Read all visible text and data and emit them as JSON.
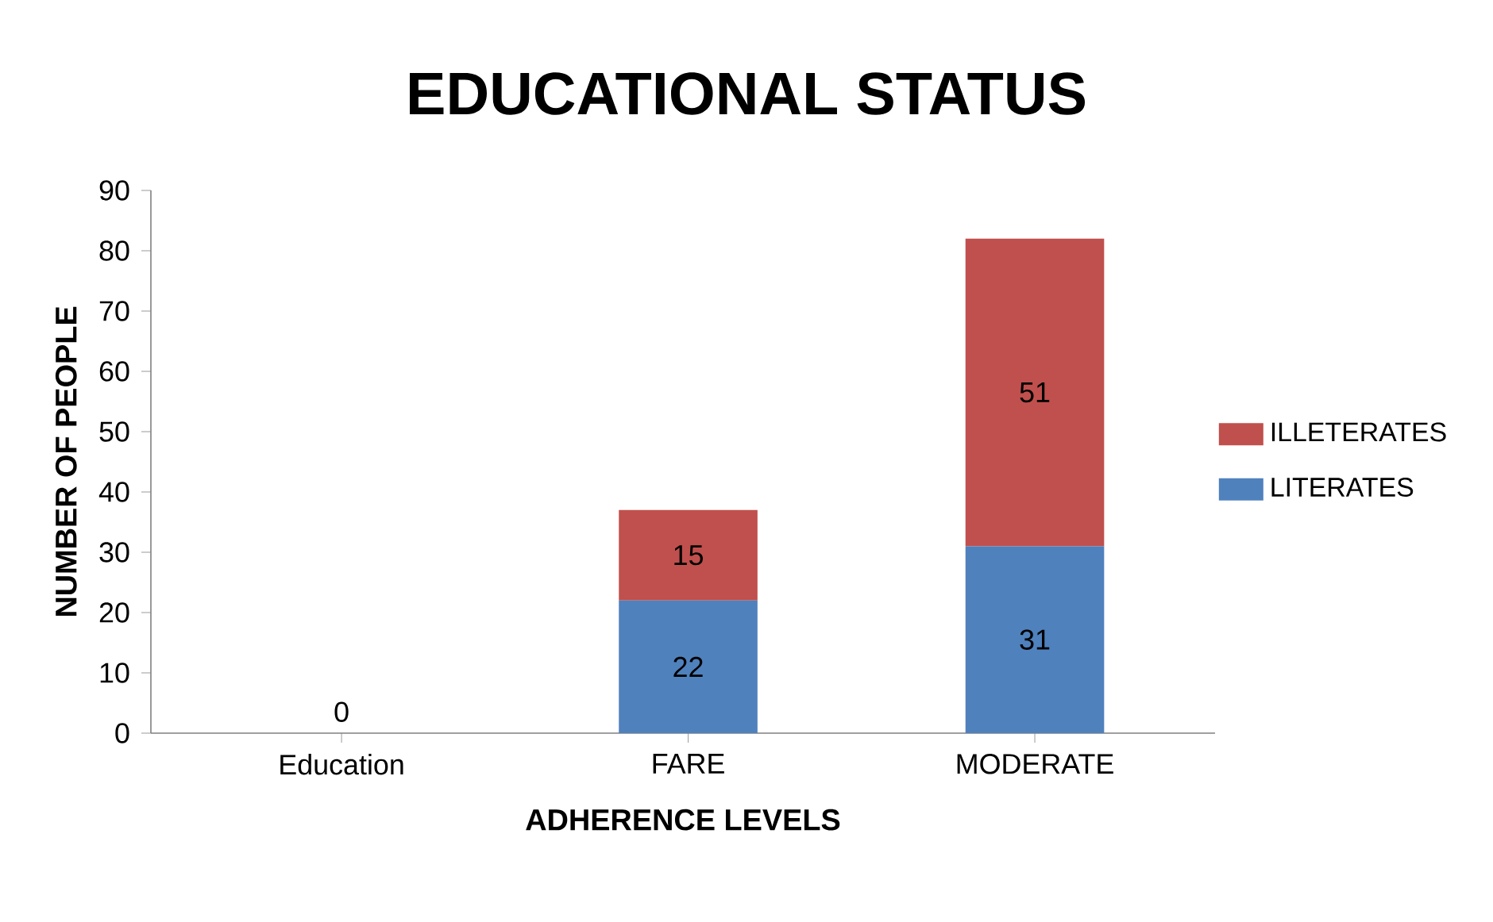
{
  "chart_data": {
    "type": "bar",
    "stacked": true,
    "title": "EDUCATIONAL STATUS",
    "xlabel": "ADHERENCE LEVELS",
    "ylabel": "NUMBER OF PEOPLE",
    "categories": [
      "Education",
      "FARE",
      "MODERATE"
    ],
    "series": [
      {
        "name": "LITERATES",
        "color": "#4f81bd",
        "values": [
          0,
          22,
          31
        ]
      },
      {
        "name": "ILLETERATES",
        "color": "#c0504d",
        "values": [
          null,
          15,
          51
        ]
      }
    ],
    "ylim": [
      0,
      90
    ],
    "yticks": [
      0,
      10,
      20,
      30,
      40,
      50,
      60,
      70,
      80,
      90
    ],
    "grid": false,
    "legend": "right",
    "data_labels": true
  }
}
